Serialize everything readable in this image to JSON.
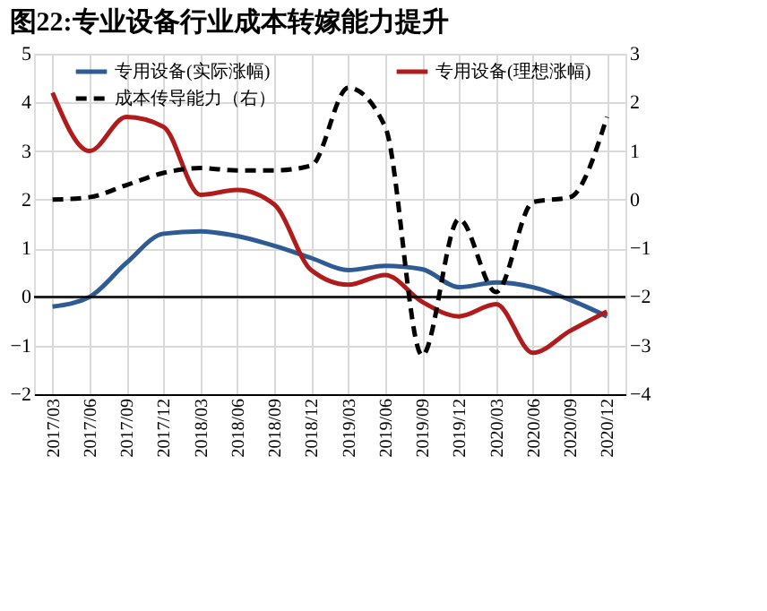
{
  "chart_data": {
    "type": "line",
    "title": "图22:专业设备行业成本转嫁能力提升",
    "categories": [
      "2017/03",
      "2017/06",
      "2017/09",
      "2017/12",
      "2018/03",
      "2018/06",
      "2018/09",
      "2018/12",
      "2019/03",
      "2019/06",
      "2019/09",
      "2019/12",
      "2020/03",
      "2020/06",
      "2020/09",
      "2020/12"
    ],
    "series": [
      {
        "name": "专用设备(实际涨幅)",
        "color": "#2e5b94",
        "line_style": "solid",
        "values": [
          -0.2,
          0.0,
          0.7,
          1.3,
          1.35,
          1.25,
          1.05,
          0.8,
          0.55,
          0.64,
          0.57,
          0.2,
          0.3,
          0.2,
          -0.06,
          -0.4
        ]
      },
      {
        "name": "专用设备(理想涨幅)",
        "color": "#b01c1c",
        "line_style": "solid",
        "values": [
          4.2,
          3.0,
          3.7,
          3.5,
          2.1,
          2.2,
          1.9,
          0.55,
          0.25,
          0.45,
          -0.1,
          -0.4,
          -0.15,
          -1.15,
          -0.7,
          -0.3
        ]
      },
      {
        "name": "成本传导能力（右）",
        "color": "#000000",
        "line_style": "dashed",
        "axis": "y2",
        "values": [
          0.0,
          0.05,
          0.3,
          0.55,
          0.65,
          0.6,
          0.6,
          0.7,
          2.3,
          1.5,
          -3.2,
          -0.4,
          -1.9,
          -0.05,
          0.05,
          1.7
        ]
      }
    ],
    "ylim": [
      -2,
      5
    ],
    "yticks": [
      -2,
      -1,
      0,
      1,
      2,
      3,
      4,
      5
    ],
    "y2lim": [
      -4,
      3
    ],
    "y2ticks": [
      -4,
      -3,
      -2,
      -1,
      0,
      1,
      2,
      3
    ],
    "ref_lines": [
      {
        "axis": "y",
        "value": 0,
        "color": "#000000"
      }
    ],
    "grid": true,
    "legend": "top left",
    "marker": "none"
  }
}
